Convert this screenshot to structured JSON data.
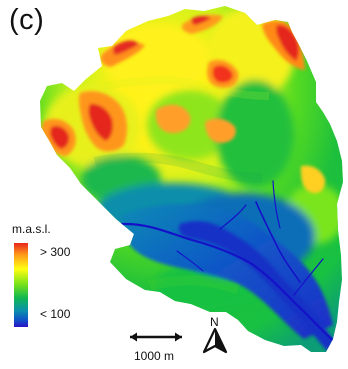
{
  "panel": {
    "label": "(c)"
  },
  "legend": {
    "title": "m.a.s.l.",
    "max_label": "> 300",
    "min_label": "< 100",
    "colors": [
      "#e8251c",
      "#ff9a18",
      "#ffff12",
      "#79e21a",
      "#12b84f",
      "#0c92ab",
      "#1050c8",
      "#2b14c6"
    ]
  },
  "scale": {
    "label": "1000 m"
  },
  "north": {
    "label": "N",
    "icon": "north-arrow-icon"
  },
  "map": {
    "type": "elevation-raster",
    "palette": {
      "lowland_blue": "#1359ca",
      "river_blue": "#0f1ec7",
      "valley_cyan": "#0c8fb0",
      "mid_green": "#18c142",
      "upland_yellow": "#ffff18",
      "hill_orange": "#ff9520",
      "peak_red": "#e5261e"
    }
  }
}
